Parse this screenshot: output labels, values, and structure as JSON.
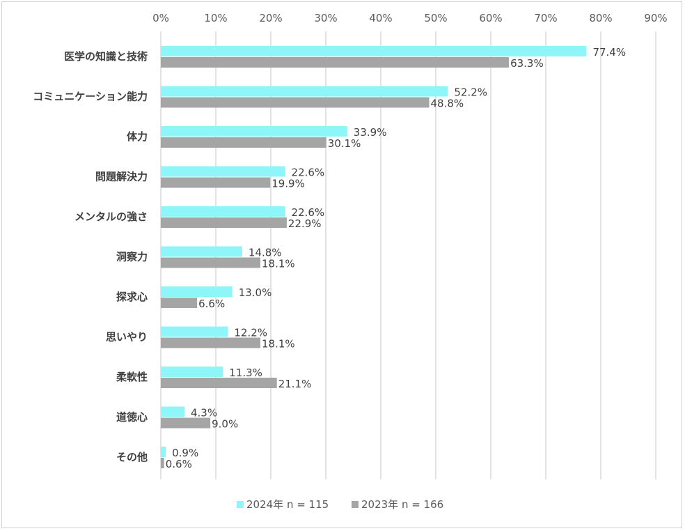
{
  "chart_data": {
    "type": "bar",
    "orientation": "horizontal",
    "categories": [
      "医学の知識と技術",
      "コミュニケーション能力",
      "体力",
      "問題解決力",
      "メンタルの強さ",
      "洞察力",
      "探求心",
      "思いやり",
      "柔軟性",
      "道徳心",
      "その他"
    ],
    "series": [
      {
        "name": "2024年 n = 115",
        "color": "#8ef5f8",
        "values": [
          77.4,
          52.2,
          33.9,
          22.6,
          22.6,
          14.8,
          13.0,
          12.2,
          11.3,
          4.3,
          0.9
        ],
        "labels": [
          "77.4%",
          "52.2%",
          "33.9%",
          "22.6%",
          "22.6%",
          "14.8%",
          "13.0%",
          "12.2%",
          "11.3%",
          "4.3%",
          "0.9%"
        ]
      },
      {
        "name": "2023年 n = 166",
        "color": "#a5a5a5",
        "values": [
          63.3,
          48.8,
          30.1,
          19.9,
          22.9,
          18.1,
          6.6,
          18.1,
          21.1,
          9.0,
          0.6
        ],
        "labels": [
          "63.3%",
          "48.8%",
          "30.1%",
          "19.9%",
          "22.9%",
          "18.1%",
          "6.6%",
          "18.1%",
          "21.1%",
          "9.0%",
          "0.6%"
        ]
      }
    ],
    "x_ticks": [
      "0%",
      "10%",
      "20%",
      "30%",
      "40%",
      "50%",
      "60%",
      "70%",
      "80%",
      "90%"
    ],
    "xlim": [
      0,
      90
    ],
    "axis_position": "top",
    "grid": true,
    "legend_position": "bottom"
  }
}
